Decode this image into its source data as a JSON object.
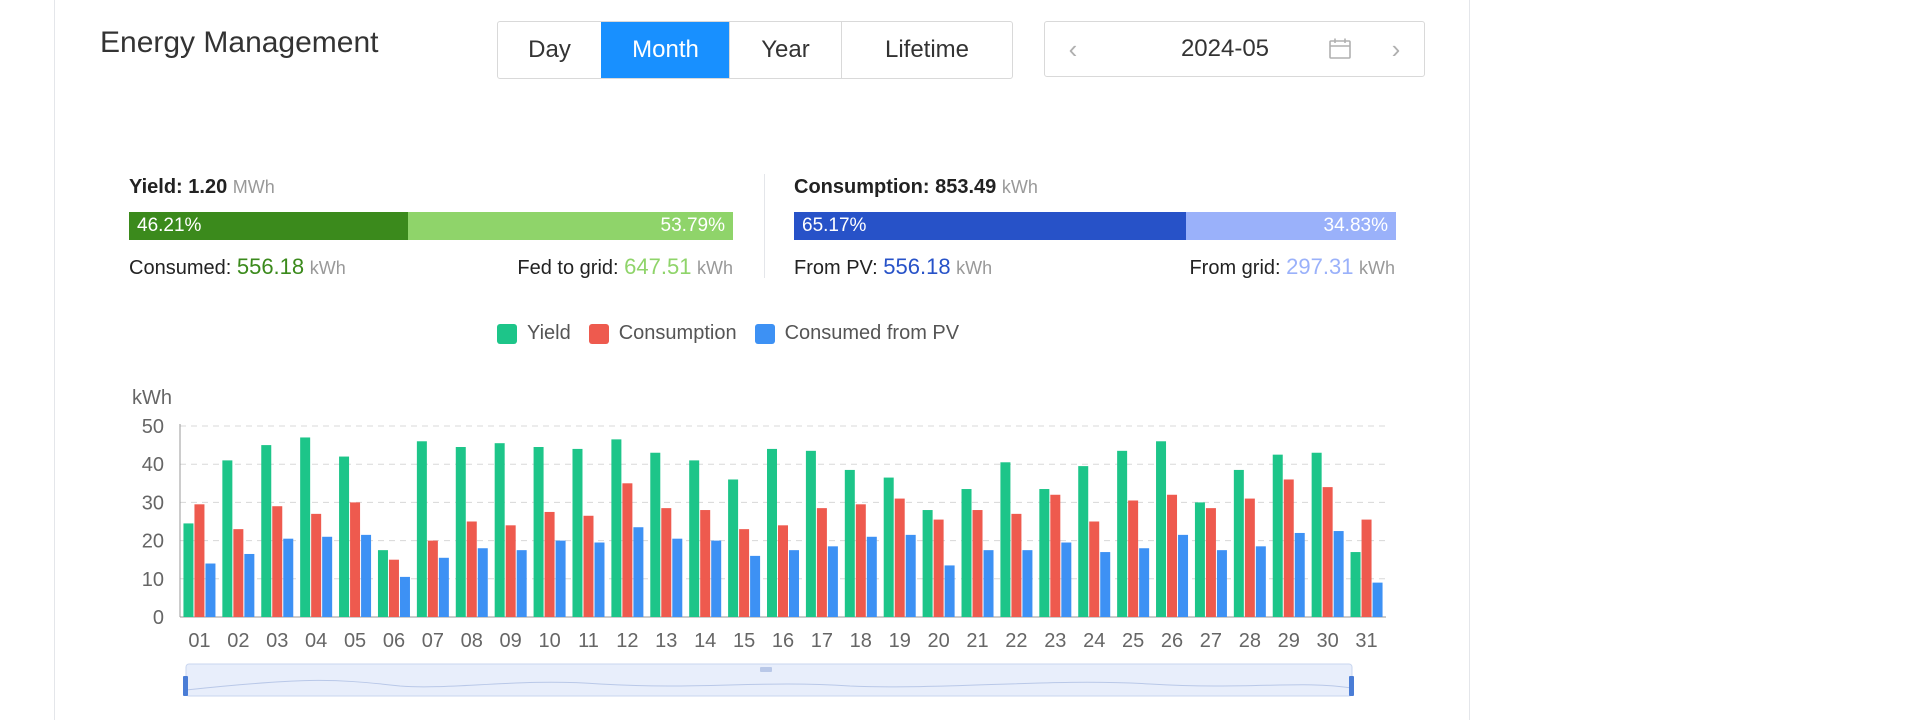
{
  "header": {
    "title": "Energy Management",
    "tabs": [
      {
        "label": "Day",
        "active": false
      },
      {
        "label": "Month",
        "active": true
      },
      {
        "label": "Year",
        "active": false
      },
      {
        "label": "Lifetime",
        "active": false
      }
    ],
    "date": "2024-05",
    "prev_icon": "chevron-left-icon",
    "next_icon": "chevron-right-icon",
    "calendar_icon": "calendar-icon"
  },
  "yield": {
    "label": "Yield:",
    "value": "1.20",
    "unit": "MWh",
    "consumed_pct": "46.21%",
    "fed_pct": "53.79%",
    "consumed_fraction": 0.4621,
    "consumed_label": "Consumed:",
    "consumed_value": "556.18",
    "consumed_unit": "kWh",
    "fed_label": "Fed to grid:",
    "fed_value": "647.51",
    "fed_unit": "kWh"
  },
  "consumption": {
    "label": "Consumption:",
    "value": "853.49",
    "unit": "kWh",
    "pv_pct": "65.17%",
    "grid_pct": "34.83%",
    "pv_fraction": 0.6517,
    "pv_label": "From PV:",
    "pv_value": "556.18",
    "pv_unit": "kWh",
    "grid_label": "From grid:",
    "grid_value": "297.31",
    "grid_unit": "kWh"
  },
  "colors": {
    "accent": "#1890ff",
    "yield_consumed": "#3b8a1c",
    "yield_fed": "#8fd46a",
    "cons_pv": "#2752c8",
    "cons_grid": "#9ab1fa",
    "series_yield": "#1dc589",
    "series_consumption": "#ee5a4e",
    "series_pv": "#3d91f4"
  },
  "chart_data": {
    "type": "bar",
    "ylabel": "kWh",
    "ylim": [
      0,
      50
    ],
    "yticks": [
      0,
      10,
      20,
      30,
      40,
      50
    ],
    "grid": true,
    "legend_position": "top-center",
    "categories": [
      "01",
      "02",
      "03",
      "04",
      "05",
      "06",
      "07",
      "08",
      "09",
      "10",
      "11",
      "12",
      "13",
      "14",
      "15",
      "16",
      "17",
      "18",
      "19",
      "20",
      "21",
      "22",
      "23",
      "24",
      "25",
      "26",
      "27",
      "28",
      "29",
      "30",
      "31"
    ],
    "series": [
      {
        "name": "Yield",
        "values": [
          24.5,
          41,
          45,
          47,
          42,
          17.5,
          46,
          44.5,
          45.5,
          44.5,
          44,
          46.5,
          43,
          41,
          36,
          44,
          43.5,
          38.5,
          36.5,
          28,
          33.5,
          40.5,
          33.5,
          39.5,
          43.5,
          46,
          30,
          38.5,
          42.5,
          43,
          17
        ]
      },
      {
        "name": "Consumption",
        "values": [
          29.5,
          23,
          29,
          27,
          30,
          15,
          20,
          25,
          24,
          27.5,
          26.5,
          35,
          28.5,
          28,
          23,
          24,
          28.5,
          29.5,
          31,
          25.5,
          28,
          27,
          32,
          25,
          30.5,
          32,
          28.5,
          31,
          36,
          34,
          25.5
        ]
      },
      {
        "name": "Consumed from PV",
        "values": [
          14,
          16.5,
          20.5,
          21,
          21.5,
          10.5,
          15.5,
          18,
          17.5,
          20,
          19.5,
          23.5,
          20.5,
          20,
          16,
          17.5,
          18.5,
          21,
          21.5,
          13.5,
          17.5,
          17.5,
          19.5,
          17,
          18,
          21.5,
          17.5,
          18.5,
          22,
          22.5,
          9
        ]
      }
    ]
  }
}
